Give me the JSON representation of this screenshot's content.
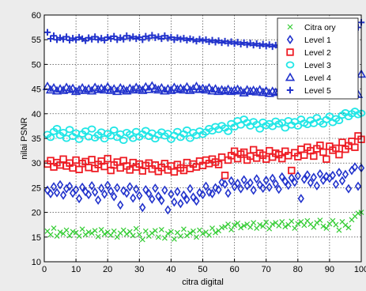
{
  "chart_data": {
    "type": "scatter",
    "title": "",
    "xlabel": "citra digital",
    "ylabel": "nilai PSNR",
    "xlim": [
      0,
      100
    ],
    "ylim": [
      10,
      60
    ],
    "xticks": [
      0,
      10,
      20,
      30,
      40,
      50,
      60,
      70,
      80,
      90,
      100
    ],
    "yticks": [
      10,
      15,
      20,
      25,
      30,
      35,
      40,
      45,
      50,
      55,
      60
    ],
    "grid": true,
    "legend_position": "top-right",
    "series": [
      {
        "name": "Citra ory",
        "marker": "x",
        "color": "#33cc33",
        "x": [
          1,
          2,
          3,
          4,
          5,
          6,
          7,
          8,
          9,
          10,
          11,
          12,
          13,
          14,
          15,
          16,
          17,
          18,
          19,
          20,
          21,
          22,
          23,
          24,
          25,
          26,
          27,
          28,
          29,
          30,
          31,
          32,
          33,
          34,
          35,
          36,
          37,
          38,
          39,
          40,
          41,
          42,
          43,
          44,
          45,
          46,
          47,
          48,
          49,
          50,
          51,
          52,
          53,
          54,
          55,
          56,
          57,
          58,
          59,
          60,
          61,
          62,
          63,
          64,
          65,
          66,
          67,
          68,
          69,
          70,
          71,
          72,
          73,
          74,
          75,
          76,
          77,
          78,
          79,
          80,
          81,
          82,
          83,
          84,
          85,
          86,
          87,
          88,
          89,
          90,
          91,
          92,
          93,
          94,
          95,
          96,
          97,
          98,
          99,
          100
        ],
        "y": [
          16.2,
          15.5,
          16.8,
          15.2,
          16.0,
          15.7,
          16.4,
          15.3,
          16.1,
          15.9,
          15.2,
          16.6,
          15.5,
          16.0,
          15.8,
          16.3,
          15.1,
          16.5,
          15.6,
          16.0,
          15.4,
          16.2,
          15.0,
          15.8,
          16.4,
          15.6,
          16.1,
          15.3,
          16.7,
          15.5,
          14.5,
          16.2,
          15.2,
          15.8,
          16.3,
          15.0,
          16.5,
          14.8,
          15.7,
          16.1,
          14.6,
          15.9,
          15.2,
          16.6,
          15.3,
          15.8,
          16.2,
          15.0,
          16.4,
          15.7,
          16.0,
          15.4,
          16.8,
          15.9,
          16.3,
          16.9,
          17.1,
          17.6,
          16.5,
          17.4,
          17.8,
          16.9,
          17.3,
          17.6,
          17.0,
          17.9,
          16.8,
          17.5,
          17.2,
          18.0,
          16.7,
          17.6,
          17.9,
          17.3,
          18.1,
          17.1,
          17.5,
          18.2,
          16.8,
          17.7,
          18.1,
          17.4,
          18.3,
          17.6,
          17.0,
          17.9,
          18.4,
          17.2,
          16.8,
          17.7,
          18.3,
          17.5,
          16.4,
          18.1,
          17.4,
          16.9,
          18.5,
          19.2,
          19.8,
          20.0
        ]
      },
      {
        "name": "Level 1",
        "marker": "diamond",
        "color": "#2233cc",
        "x": [
          1,
          2,
          3,
          4,
          5,
          6,
          7,
          8,
          9,
          10,
          11,
          12,
          13,
          14,
          15,
          16,
          17,
          18,
          19,
          20,
          21,
          22,
          23,
          24,
          25,
          26,
          27,
          28,
          29,
          30,
          31,
          32,
          33,
          34,
          35,
          36,
          37,
          38,
          39,
          40,
          41,
          42,
          43,
          44,
          45,
          46,
          47,
          48,
          49,
          50,
          51,
          52,
          53,
          54,
          55,
          56,
          57,
          58,
          59,
          60,
          61,
          62,
          63,
          64,
          65,
          66,
          67,
          68,
          69,
          70,
          71,
          72,
          73,
          74,
          75,
          76,
          77,
          78,
          79,
          80,
          81,
          82,
          83,
          84,
          85,
          86,
          87,
          88,
          89,
          90,
          91,
          92,
          93,
          94,
          95,
          96,
          97,
          98,
          99,
          100
        ],
        "y": [
          24.5,
          23.8,
          25.2,
          24.0,
          25.6,
          23.5,
          24.8,
          25.3,
          23.9,
          24.6,
          22.8,
          25.1,
          24.2,
          23.6,
          25.4,
          24.1,
          22.5,
          24.9,
          23.7,
          25.5,
          24.3,
          23.2,
          25.0,
          21.5,
          24.4,
          23.9,
          25.2,
          22.9,
          24.7,
          23.4,
          21.0,
          24.6,
          23.8,
          22.7,
          24.9,
          23.3,
          22.4,
          24.5,
          20.5,
          23.7,
          22.1,
          24.2,
          21.8,
          23.5,
          22.6,
          24.8,
          23.1,
          22.3,
          24.0,
          23.6,
          25.3,
          24.1,
          23.8,
          25.0,
          24.6,
          26.1,
          25.7,
          23.9,
          26.4,
          25.2,
          25.9,
          24.8,
          26.6,
          25.4,
          26.0,
          24.5,
          26.8,
          25.6,
          24.9,
          26.5,
          25.1,
          26.9,
          25.8,
          24.7,
          27.2,
          26.3,
          25.5,
          27.0,
          26.1,
          27.4,
          22.8,
          26.7,
          27.6,
          26.0,
          27.1,
          25.4,
          27.8,
          26.5,
          27.3,
          26.9,
          27.5,
          25.7,
          28.1,
          26.4,
          27.7,
          24.8,
          28.5,
          29.2,
          25.3,
          29.0
        ]
      },
      {
        "name": "Level 2",
        "marker": "square",
        "color": "#ee1c24",
        "x": [
          1,
          2,
          3,
          4,
          5,
          6,
          7,
          8,
          9,
          10,
          11,
          12,
          13,
          14,
          15,
          16,
          17,
          18,
          19,
          20,
          21,
          22,
          23,
          24,
          25,
          26,
          27,
          28,
          29,
          30,
          31,
          32,
          33,
          34,
          35,
          36,
          37,
          38,
          39,
          40,
          41,
          42,
          43,
          44,
          45,
          46,
          47,
          48,
          49,
          50,
          51,
          52,
          53,
          54,
          55,
          56,
          57,
          58,
          59,
          60,
          61,
          62,
          63,
          64,
          65,
          66,
          67,
          68,
          69,
          70,
          71,
          72,
          73,
          74,
          75,
          76,
          77,
          78,
          79,
          80,
          81,
          82,
          83,
          84,
          85,
          86,
          87,
          88,
          89,
          90,
          91,
          92,
          93,
          94,
          95,
          96,
          97,
          98,
          99,
          100
        ],
        "y": [
          29.8,
          30.5,
          29.2,
          30.1,
          29.6,
          30.8,
          29.4,
          30.0,
          29.0,
          30.6,
          28.7,
          29.9,
          30.3,
          29.1,
          30.7,
          28.9,
          29.7,
          30.4,
          29.3,
          30.9,
          28.5,
          29.6,
          30.2,
          29.0,
          30.5,
          29.4,
          28.6,
          30.1,
          29.2,
          29.8,
          28.4,
          29.5,
          30.0,
          28.8,
          29.6,
          28.3,
          29.1,
          29.9,
          28.6,
          29.4,
          28.2,
          29.7,
          29.0,
          28.5,
          30.1,
          28.9,
          29.8,
          29.2,
          30.4,
          29.5,
          30.6,
          29.9,
          30.8,
          30.2,
          29.7,
          31.2,
          27.5,
          30.6,
          31.5,
          32.4,
          30.9,
          31.8,
          32.2,
          30.6,
          31.4,
          32.7,
          31.0,
          32.0,
          31.6,
          30.8,
          32.5,
          31.2,
          32.0,
          31.7,
          30.9,
          32.4,
          31.5,
          28.5,
          32.1,
          31.3,
          32.8,
          31.6,
          33.2,
          32.5,
          31.4,
          32.9,
          33.6,
          32.2,
          30.8,
          33.4,
          32.6,
          33.0,
          31.7,
          34.2,
          32.8,
          33.5,
          34.4,
          33.2,
          35.5,
          34.8
        ]
      },
      {
        "name": "Level 3",
        "marker": "circle",
        "color": "#22e6e6",
        "x": [
          1,
          2,
          3,
          4,
          5,
          6,
          7,
          8,
          9,
          10,
          11,
          12,
          13,
          14,
          15,
          16,
          17,
          18,
          19,
          20,
          21,
          22,
          23,
          24,
          25,
          26,
          27,
          28,
          29,
          30,
          31,
          32,
          33,
          34,
          35,
          36,
          37,
          38,
          39,
          40,
          41,
          42,
          43,
          44,
          45,
          46,
          47,
          48,
          49,
          50,
          51,
          52,
          53,
          54,
          55,
          56,
          57,
          58,
          59,
          60,
          61,
          62,
          63,
          64,
          65,
          66,
          67,
          68,
          69,
          70,
          71,
          72,
          73,
          74,
          75,
          76,
          77,
          78,
          79,
          80,
          81,
          82,
          83,
          84,
          85,
          86,
          87,
          88,
          89,
          90,
          91,
          92,
          93,
          94,
          95,
          96,
          97,
          98,
          99,
          100
        ],
        "y": [
          35.8,
          35.2,
          36.4,
          37.0,
          35.6,
          36.2,
          35.0,
          36.8,
          35.4,
          36.1,
          34.8,
          35.9,
          36.5,
          35.3,
          36.9,
          35.1,
          35.7,
          36.3,
          34.9,
          36.0,
          35.5,
          36.7,
          35.2,
          35.9,
          34.6,
          36.2,
          35.8,
          35.0,
          36.4,
          35.3,
          35.9,
          36.6,
          35.4,
          36.1,
          34.9,
          35.7,
          36.3,
          35.5,
          36.0,
          34.8,
          35.6,
          36.4,
          35.2,
          35.9,
          36.7,
          35.0,
          36.2,
          35.6,
          36.5,
          35.8,
          36.3,
          37.0,
          36.5,
          37.4,
          36.8,
          37.6,
          37.1,
          36.4,
          38.0,
          37.3,
          38.6,
          37.7,
          38.9,
          38.2,
          37.5,
          38.4,
          37.8,
          36.9,
          38.3,
          37.6,
          38.0,
          37.4,
          38.5,
          37.9,
          38.2,
          37.1,
          38.6,
          37.7,
          38.4,
          37.5,
          38.9,
          38.1,
          37.8,
          38.7,
          38.0,
          39.2,
          38.4,
          37.9,
          38.8,
          39.5,
          38.2,
          39.0,
          38.6,
          39.7,
          40.2,
          39.4,
          40.0,
          40.5,
          39.8,
          40.1
        ]
      },
      {
        "name": "Level 4",
        "marker": "triangle",
        "color": "#2233cc",
        "x": [
          1,
          2,
          3,
          4,
          5,
          6,
          7,
          8,
          9,
          10,
          11,
          12,
          13,
          14,
          15,
          16,
          17,
          18,
          19,
          20,
          21,
          22,
          23,
          24,
          25,
          26,
          27,
          28,
          29,
          30,
          31,
          32,
          33,
          34,
          35,
          36,
          37,
          38,
          39,
          40,
          41,
          42,
          43,
          44,
          45,
          46,
          47,
          48,
          49,
          50,
          51,
          52,
          53,
          54,
          55,
          56,
          57,
          58,
          59,
          60,
          61,
          62,
          63,
          64,
          65,
          66,
          67,
          68,
          69,
          70,
          71,
          72,
          73,
          74,
          75,
          76,
          77,
          78,
          79,
          80,
          81,
          82,
          83,
          84,
          85,
          86,
          87,
          88,
          89,
          90,
          91,
          92,
          93,
          94,
          95,
          96,
          97,
          98,
          99,
          100
        ],
        "y": [
          45.5,
          44.8,
          45.2,
          44.6,
          45.0,
          44.7,
          45.3,
          44.9,
          45.1,
          44.5,
          44.8,
          45.2,
          44.7,
          45.0,
          44.6,
          45.3,
          44.9,
          45.1,
          44.8,
          45.4,
          44.7,
          45.0,
          44.5,
          45.2,
          44.9,
          44.6,
          45.1,
          44.8,
          45.3,
          45.0,
          44.7,
          45.4,
          44.9,
          45.6,
          45.1,
          44.8,
          45.2,
          44.6,
          45.0,
          44.7,
          45.3,
          44.9,
          45.1,
          44.8,
          45.4,
          44.7,
          45.0,
          45.5,
          44.9,
          45.1,
          44.8,
          45.2,
          44.6,
          45.0,
          44.5,
          44.8,
          44.6,
          44.9,
          44.5,
          44.7,
          44.9,
          44.6,
          44.2,
          44.8,
          44.5,
          44.7,
          44.4,
          44.8,
          44.3,
          44.6,
          44.1,
          44.5,
          44.3,
          44.6,
          44.2,
          44.5,
          44.1,
          44.4,
          44.2,
          44.6,
          44.0,
          44.4,
          44.1,
          44.3,
          44.0,
          44.4,
          44.1,
          44.2,
          44.0,
          44.3,
          43.9,
          44.2,
          44.0,
          44.1,
          43.8,
          44.2,
          44.0,
          44.1,
          43.9,
          48.0
        ]
      },
      {
        "name": "Level 5",
        "marker": "plus",
        "color": "#2233cc",
        "x": [
          1,
          2,
          3,
          4,
          5,
          6,
          7,
          8,
          9,
          10,
          11,
          12,
          13,
          14,
          15,
          16,
          17,
          18,
          19,
          20,
          21,
          22,
          23,
          24,
          25,
          26,
          27,
          28,
          29,
          30,
          31,
          32,
          33,
          34,
          35,
          36,
          37,
          38,
          39,
          40,
          41,
          42,
          43,
          44,
          45,
          46,
          47,
          48,
          49,
          50,
          51,
          52,
          53,
          54,
          55,
          56,
          57,
          58,
          59,
          60,
          61,
          62,
          63,
          64,
          65,
          66,
          67,
          68,
          69,
          70,
          71,
          72,
          73,
          74,
          75,
          76,
          77,
          78,
          79,
          80,
          81,
          82,
          83,
          84,
          85,
          86,
          87,
          88,
          89,
          90,
          91,
          92,
          93,
          94,
          95,
          96,
          97,
          98,
          99,
          100
        ],
        "y": [
          56.5,
          55.2,
          55.8,
          55.0,
          55.4,
          55.1,
          55.6,
          54.9,
          55.3,
          55.0,
          55.5,
          55.2,
          54.8,
          55.4,
          55.1,
          55.6,
          55.0,
          55.3,
          54.9,
          55.5,
          55.2,
          55.7,
          55.0,
          55.4,
          55.1,
          55.8,
          55.3,
          55.6,
          55.2,
          55.5,
          55.0,
          55.7,
          55.3,
          55.9,
          55.4,
          55.6,
          55.2,
          55.8,
          55.3,
          55.5,
          55.0,
          55.4,
          55.1,
          55.3,
          54.9,
          55.2,
          55.0,
          54.7,
          55.1,
          54.8,
          55.0,
          54.6,
          54.9,
          54.5,
          54.8,
          54.4,
          54.7,
          54.3,
          54.6,
          54.2,
          54.5,
          54.1,
          54.4,
          54.0,
          54.3,
          53.9,
          54.2,
          53.8,
          54.1,
          53.7,
          54.0,
          53.6,
          53.9,
          53.5,
          53.8,
          53.6,
          53.9,
          53.5,
          53.8,
          53.4,
          53.7,
          53.5,
          53.8,
          53.4,
          53.6,
          53.3,
          53.7,
          53.4,
          53.6,
          53.2,
          53.5,
          53.3,
          53.6,
          53.4,
          54.0,
          54.5,
          55.0,
          56.5,
          57.5,
          58.5
        ]
      }
    ]
  }
}
